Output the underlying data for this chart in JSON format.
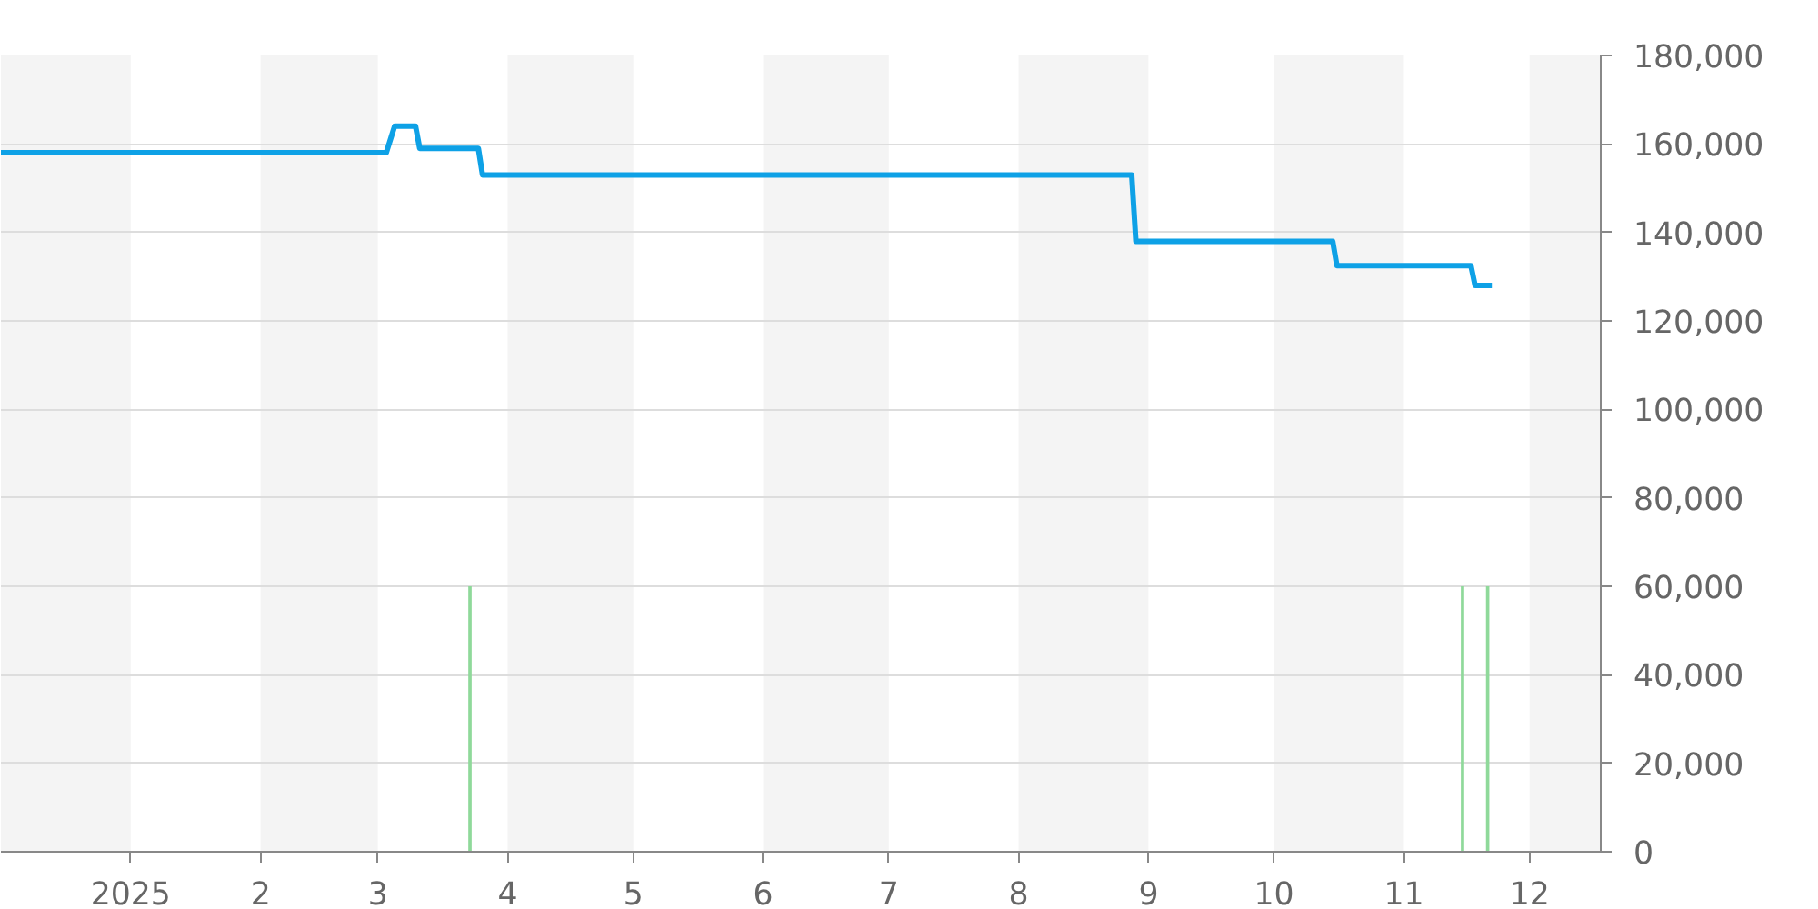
{
  "chart_data": {
    "type": "line",
    "xlim": [
      "2024-12-01",
      "2025-12-18"
    ],
    "ylim": [
      0,
      180000
    ],
    "xticks": [
      {
        "value": "2025-01-01",
        "label": "2025"
      },
      {
        "value": "2025-02-01",
        "label": "2"
      },
      {
        "value": "2025-03-01",
        "label": "3"
      },
      {
        "value": "2025-04-01",
        "label": "4"
      },
      {
        "value": "2025-05-01",
        "label": "5"
      },
      {
        "value": "2025-06-01",
        "label": "6"
      },
      {
        "value": "2025-07-01",
        "label": "7"
      },
      {
        "value": "2025-08-01",
        "label": "8"
      },
      {
        "value": "2025-09-01",
        "label": "9"
      },
      {
        "value": "2025-10-01",
        "label": "10"
      },
      {
        "value": "2025-11-01",
        "label": "11"
      },
      {
        "value": "2025-12-01",
        "label": "12"
      }
    ],
    "yticks": [
      0,
      {
        "value": 20000,
        "label": "20,000"
      },
      {
        "value": 40000,
        "label": "40,000"
      },
      {
        "value": 60000,
        "label": "60,000"
      },
      {
        "value": 80000,
        "label": "80,000"
      },
      {
        "value": 100000,
        "label": "100,000"
      },
      {
        "value": 120000,
        "label": "120,000"
      },
      {
        "value": 140000,
        "label": "140,000"
      },
      {
        "value": 160000,
        "label": "160,000"
      },
      {
        "value": 180000,
        "label": "180,000"
      }
    ],
    "grid": "y",
    "marker": "none",
    "line_style": "solid",
    "bands": [
      {
        "axis": "x",
        "from": "2024-12-01",
        "to": "2025-01-01",
        "color": "#f4f4f4"
      },
      {
        "axis": "x",
        "from": "2025-02-01",
        "to": "2025-03-01",
        "color": "#f4f4f4"
      },
      {
        "axis": "x",
        "from": "2025-04-01",
        "to": "2025-05-01",
        "color": "#f4f4f4"
      },
      {
        "axis": "x",
        "from": "2025-06-01",
        "to": "2025-07-01",
        "color": "#f4f4f4"
      },
      {
        "axis": "x",
        "from": "2025-08-01",
        "to": "2025-09-01",
        "color": "#f4f4f4"
      },
      {
        "axis": "x",
        "from": "2025-10-01",
        "to": "2025-11-01",
        "color": "#f4f4f4"
      },
      {
        "axis": "x",
        "from": "2025-12-01",
        "to": "2025-12-18",
        "color": "#f4f4f4"
      }
    ],
    "series": [
      {
        "color": "#0ea1e6",
        "x": [
          "2024-12-01",
          "2025-03-03",
          "2025-03-05",
          "2025-03-10",
          "2025-03-11",
          "2025-03-25",
          "2025-03-26",
          "2025-08-28",
          "2025-08-29",
          "2025-10-15",
          "2025-10-16",
          "2025-11-17",
          "2025-11-18",
          "2025-11-22"
        ],
        "values": [
          158000,
          158000,
          164000,
          164000,
          159000,
          159000,
          153000,
          153000,
          138000,
          138000,
          132500,
          132500,
          128000,
          128000
        ]
      },
      {
        "type": "bar",
        "color": "#8fd99a",
        "x": [
          "2025-03-23",
          "2025-11-15",
          "2025-11-21"
        ],
        "values": [
          60000,
          60000,
          60000
        ]
      }
    ]
  }
}
